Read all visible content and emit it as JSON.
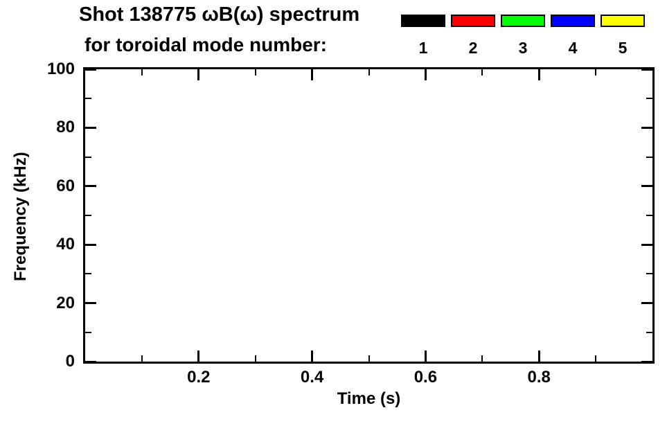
{
  "header": {
    "title_line1": "Shot 138775 ωB(ω) spectrum",
    "title_line2": "for toroidal mode number:"
  },
  "legend": {
    "entries": [
      {
        "label": "1",
        "color": "#000000"
      },
      {
        "label": "2",
        "color": "#ff0000"
      },
      {
        "label": "3",
        "color": "#00ff00"
      },
      {
        "label": "4",
        "color": "#0000ff"
      },
      {
        "label": "5",
        "color": "#ffff00"
      }
    ]
  },
  "chart_data": {
    "type": "scatter",
    "title": "Shot 138775 ωB(ω) spectrum for toroidal mode number: 1 2 3 4 5",
    "xlabel": "Time (s)",
    "ylabel": "Frequency (kHz)",
    "xlim": [
      0,
      1
    ],
    "ylim": [
      0,
      100
    ],
    "x_major_ticks": [
      0.2,
      0.4,
      0.6,
      0.8
    ],
    "x_tick_labels": [
      "0.2",
      "0.4",
      "0.6",
      "0.8"
    ],
    "x_minor_step": 0.1,
    "y_major_ticks": [
      0,
      20,
      40,
      60,
      80,
      100
    ],
    "y_tick_labels": [
      "0",
      "20",
      "40",
      "60",
      "80",
      "100"
    ],
    "y_minor_step": 10,
    "grid": false,
    "legend_position": "top-right",
    "series": [
      {
        "name": "toroidal mode n=1",
        "color": "#000000",
        "points": []
      },
      {
        "name": "toroidal mode n=2",
        "color": "#ff0000",
        "points": []
      },
      {
        "name": "toroidal mode n=3",
        "color": "#00ff00",
        "points": []
      },
      {
        "name": "toroidal mode n=4",
        "color": "#0000ff",
        "points": []
      },
      {
        "name": "toroidal mode n=5",
        "color": "#ffff00",
        "points": []
      }
    ]
  }
}
